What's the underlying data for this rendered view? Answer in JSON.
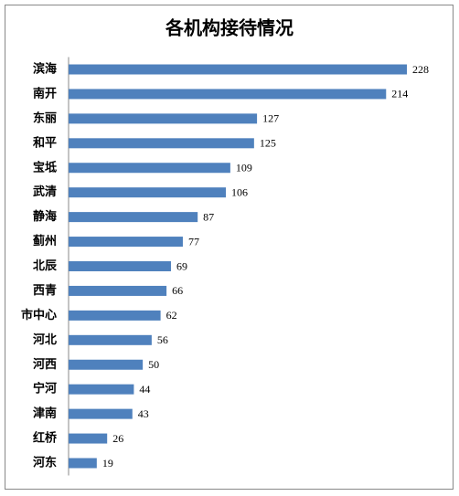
{
  "chart_data": {
    "type": "bar",
    "orientation": "horizontal",
    "title": "各机构接待情况",
    "categories": [
      "滨海",
      "南开",
      "东丽",
      "和平",
      "宝坻",
      "武清",
      "静海",
      "蓟州",
      "北辰",
      "西青",
      "市中心",
      "河北",
      "河西",
      "宁河",
      "津南",
      "红桥",
      "河东"
    ],
    "values": [
      228,
      214,
      127,
      125,
      109,
      106,
      87,
      77,
      69,
      66,
      62,
      56,
      50,
      44,
      43,
      26,
      19
    ],
    "color": "#4f81bd"
  }
}
